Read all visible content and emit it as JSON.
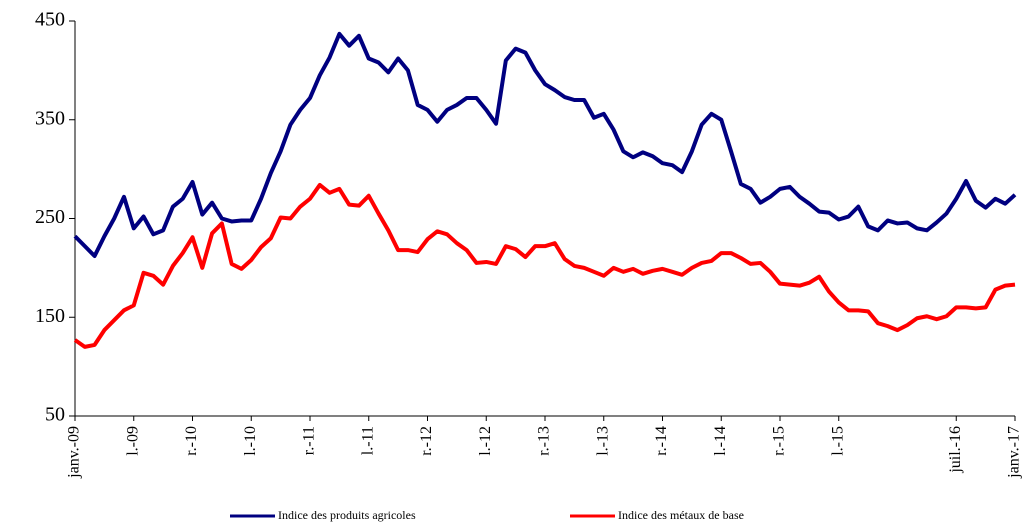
{
  "chart_data": {
    "type": "line",
    "categories": [
      "janv.-09",
      null,
      null,
      null,
      null,
      null,
      "l.-09",
      null,
      null,
      null,
      null,
      null,
      "r.-10",
      null,
      null,
      null,
      null,
      null,
      "l.-10",
      null,
      null,
      null,
      null,
      null,
      "r.-11",
      null,
      null,
      null,
      null,
      null,
      "l.-11",
      null,
      null,
      null,
      null,
      null,
      "r.-12",
      null,
      null,
      null,
      null,
      null,
      "l.-12",
      null,
      null,
      null,
      null,
      null,
      "r.-13",
      null,
      null,
      null,
      null,
      null,
      "l.-13",
      null,
      null,
      null,
      null,
      null,
      "r.-14",
      null,
      null,
      null,
      null,
      null,
      "l.-14",
      null,
      null,
      null,
      null,
      null,
      "r.-15",
      null,
      null,
      null,
      null,
      null,
      "l.-15",
      null,
      null,
      null,
      null,
      null,
      null,
      null,
      null,
      null,
      null,
      null,
      "juil.-16",
      null,
      null,
      null,
      null,
      null,
      "janv.-17"
    ],
    "series": [
      {
        "name": "Indice des produits agricoles",
        "color": "#000080",
        "values": [
          232,
          222,
          212,
          232,
          250,
          272,
          240,
          252,
          234,
          238,
          262,
          270,
          287,
          254,
          266,
          250,
          247,
          248,
          248,
          270,
          296,
          318,
          345,
          360,
          372,
          395,
          413,
          437,
          425,
          435,
          412,
          408,
          398,
          412,
          400,
          365,
          360,
          348,
          360,
          365,
          372,
          372,
          360,
          346,
          410,
          422,
          418,
          400,
          386,
          380,
          373,
          370,
          370,
          352,
          356,
          340,
          318,
          312,
          317,
          313,
          306,
          304,
          297,
          318,
          345,
          356,
          350,
          318,
          285,
          280,
          266,
          272,
          280,
          282,
          272,
          265,
          257,
          256,
          249,
          252,
          262,
          242,
          238,
          248,
          245,
          246,
          240,
          238,
          246,
          255,
          270,
          288,
          268,
          261,
          270,
          265,
          274
        ]
      },
      {
        "name": "Indice des métaux de base",
        "color": "#ff0000",
        "values": [
          127,
          120,
          122,
          137,
          147,
          157,
          162,
          195,
          192,
          183,
          202,
          215,
          231,
          200,
          235,
          245,
          204,
          199,
          208,
          221,
          230,
          251,
          250,
          262,
          270,
          284,
          276,
          280,
          264,
          263,
          273,
          255,
          238,
          218,
          218,
          216,
          229,
          237,
          234,
          225,
          218,
          205,
          206,
          204,
          222,
          219,
          211,
          222,
          222,
          225,
          209,
          202,
          200,
          196,
          192,
          200,
          196,
          199,
          194,
          197,
          199,
          196,
          193,
          200,
          205,
          207,
          215,
          215,
          210,
          204,
          205,
          196,
          184,
          183,
          182,
          185,
          191,
          176,
          165,
          157,
          157,
          156,
          144,
          141,
          137,
          142,
          149,
          151,
          148,
          151,
          160,
          160,
          159,
          160,
          178,
          182,
          183
        ]
      }
    ],
    "ylim": [
      50,
      450
    ],
    "yticks": [
      50,
      150,
      250,
      350,
      450
    ]
  }
}
